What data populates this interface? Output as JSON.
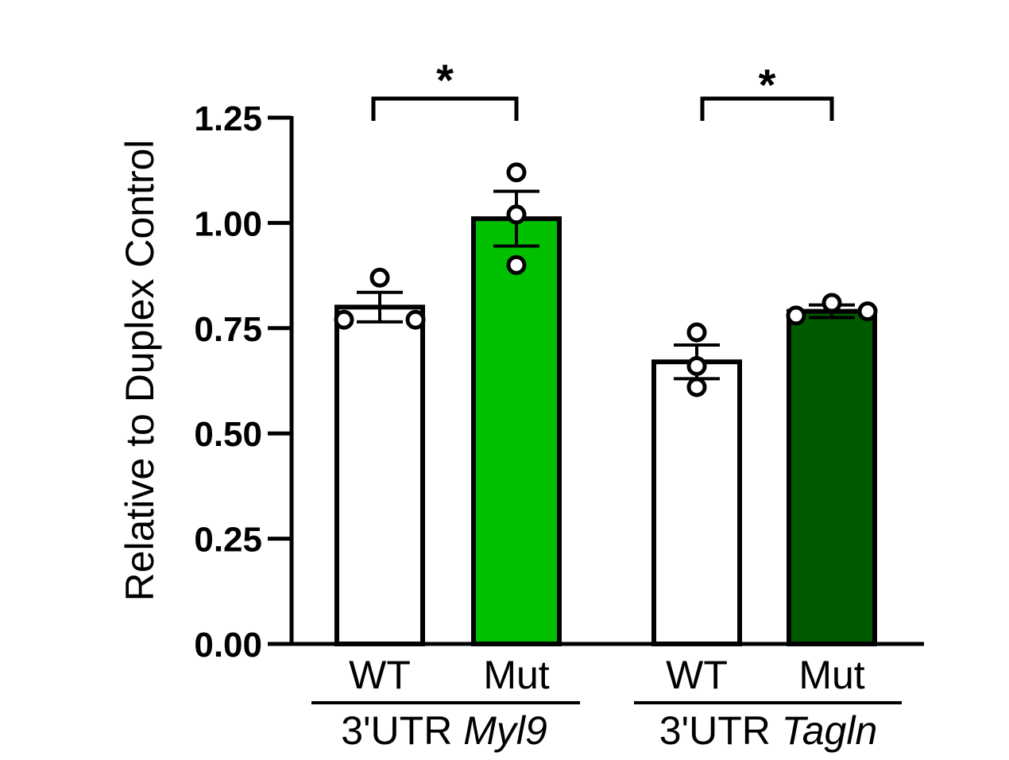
{
  "chart_data": {
    "type": "bar",
    "ylabel": "Relative to Duplex Control",
    "ylim": [
      0,
      1.25
    ],
    "yticks": [
      0.0,
      0.25,
      0.5,
      0.75,
      1.0,
      1.25
    ],
    "ytick_labels": [
      "0.00",
      "0.25",
      "0.50",
      "0.75",
      "1.00",
      "1.25"
    ],
    "grid": false,
    "groups": [
      {
        "label_prefix": "3'UTR ",
        "label_gene": "Myl9",
        "bars": [
          {
            "category": "WT",
            "value": 0.8,
            "sem": 0.035,
            "points": [
              0.77,
              0.87,
              0.77
            ],
            "color": "#ffffff"
          },
          {
            "category": "Mut",
            "value": 1.01,
            "sem": 0.065,
            "points": [
              1.12,
              1.02,
              0.9
            ],
            "color": "#00c000"
          }
        ],
        "significance": "*"
      },
      {
        "label_prefix": "3'UTR ",
        "label_gene": "Tagln",
        "bars": [
          {
            "category": "WT",
            "value": 0.67,
            "sem": 0.04,
            "points": [
              0.74,
              0.66,
              0.61
            ],
            "color": "#ffffff"
          },
          {
            "category": "Mut",
            "value": 0.79,
            "sem": 0.015,
            "points": [
              0.78,
              0.81,
              0.79
            ],
            "color": "#005a00"
          }
        ],
        "significance": "*"
      }
    ]
  }
}
